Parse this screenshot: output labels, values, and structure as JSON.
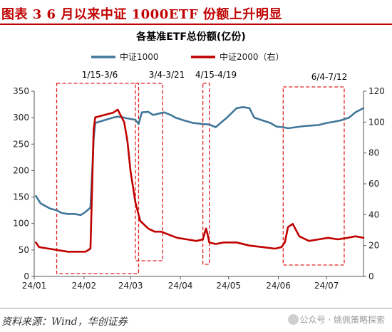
{
  "header": {
    "title": "图表 3   6 月以来中证 1000ETF 份额上升明显"
  },
  "footer": {
    "source": "资料来源：Wind，华创证券",
    "watermark": "公众号 · 姚佩策略探索"
  },
  "chart_data": {
    "type": "line",
    "title": "各基准ETF总份额(亿份)",
    "legend_position": "top",
    "grid": false,
    "x_ticks": [
      "24/01",
      "24/02",
      "24/03",
      "24/04",
      "24/05",
      "24/06",
      "24/07"
    ],
    "x_range": [
      "2024-01-01",
      "2024-07-24"
    ],
    "y_left": {
      "range": [
        0,
        350
      ],
      "ticks": [
        0,
        50,
        100,
        150,
        200,
        250,
        300,
        350
      ]
    },
    "y_right": {
      "range": [
        0,
        120
      ],
      "ticks": [
        0,
        20,
        40,
        60,
        80,
        100,
        120
      ]
    },
    "series": [
      {
        "name": "中证1000",
        "axis": "left",
        "color": "#41779a",
        "points": [
          [
            "2024-01-02",
            152
          ],
          [
            "2024-01-05",
            138
          ],
          [
            "2024-01-08",
            133
          ],
          [
            "2024-01-11",
            128
          ],
          [
            "2024-01-15",
            125
          ],
          [
            "2024-01-18",
            120
          ],
          [
            "2024-01-22",
            118
          ],
          [
            "2024-01-26",
            118
          ],
          [
            "2024-01-30",
            116
          ],
          [
            "2024-02-02",
            122
          ],
          [
            "2024-02-05",
            130
          ],
          [
            "2024-02-06",
            190
          ],
          [
            "2024-02-07",
            260
          ],
          [
            "2024-02-08",
            290
          ],
          [
            "2024-02-19",
            300
          ],
          [
            "2024-02-22",
            302
          ],
          [
            "2024-02-26",
            300
          ],
          [
            "2024-02-29",
            298
          ],
          [
            "2024-03-04",
            296
          ],
          [
            "2024-03-06",
            288
          ],
          [
            "2024-03-08",
            310
          ],
          [
            "2024-03-12",
            311
          ],
          [
            "2024-03-15",
            305
          ],
          [
            "2024-03-19",
            308
          ],
          [
            "2024-03-22",
            310
          ],
          [
            "2024-03-26",
            305
          ],
          [
            "2024-03-29",
            300
          ],
          [
            "2024-04-03",
            295
          ],
          [
            "2024-04-09",
            290
          ],
          [
            "2024-04-15",
            288
          ],
          [
            "2024-04-19",
            287
          ],
          [
            "2024-04-23",
            282
          ],
          [
            "2024-04-26",
            290
          ],
          [
            "2024-04-30",
            300
          ],
          [
            "2024-05-06",
            318
          ],
          [
            "2024-05-10",
            320
          ],
          [
            "2024-05-14",
            318
          ],
          [
            "2024-05-17",
            300
          ],
          [
            "2024-05-22",
            295
          ],
          [
            "2024-05-27",
            290
          ],
          [
            "2024-05-31",
            283
          ],
          [
            "2024-06-04",
            282
          ],
          [
            "2024-06-07",
            280
          ],
          [
            "2024-06-12",
            282
          ],
          [
            "2024-06-17",
            284
          ],
          [
            "2024-06-21",
            285
          ],
          [
            "2024-06-26",
            286
          ],
          [
            "2024-07-01",
            290
          ],
          [
            "2024-07-05",
            292
          ],
          [
            "2024-07-10",
            295
          ],
          [
            "2024-07-15",
            300
          ],
          [
            "2024-07-19",
            310
          ],
          [
            "2024-07-24",
            318
          ]
        ]
      },
      {
        "name": "中证2000（右）",
        "axis": "right",
        "color": "#c00000",
        "points": [
          [
            "2024-01-02",
            22
          ],
          [
            "2024-01-04",
            19
          ],
          [
            "2024-01-10",
            18
          ],
          [
            "2024-01-16",
            17
          ],
          [
            "2024-01-22",
            16
          ],
          [
            "2024-01-28",
            16
          ],
          [
            "2024-02-02",
            16
          ],
          [
            "2024-02-05",
            18
          ],
          [
            "2024-02-06",
            55
          ],
          [
            "2024-02-07",
            95
          ],
          [
            "2024-02-08",
            103
          ],
          [
            "2024-02-19",
            106
          ],
          [
            "2024-02-22",
            108
          ],
          [
            "2024-02-26",
            100
          ],
          [
            "2024-02-28",
            88
          ],
          [
            "2024-03-01",
            68
          ],
          [
            "2024-03-04",
            48
          ],
          [
            "2024-03-07",
            36
          ],
          [
            "2024-03-12",
            31
          ],
          [
            "2024-03-16",
            29
          ],
          [
            "2024-03-20",
            29
          ],
          [
            "2024-03-25",
            27
          ],
          [
            "2024-03-30",
            25
          ],
          [
            "2024-04-05",
            24
          ],
          [
            "2024-04-11",
            23
          ],
          [
            "2024-04-15",
            24
          ],
          [
            "2024-04-17",
            31
          ],
          [
            "2024-04-18",
            27
          ],
          [
            "2024-04-19",
            22
          ],
          [
            "2024-04-23",
            21
          ],
          [
            "2024-04-28",
            22
          ],
          [
            "2024-05-06",
            22
          ],
          [
            "2024-05-14",
            20
          ],
          [
            "2024-05-22",
            19
          ],
          [
            "2024-05-30",
            18
          ],
          [
            "2024-06-03",
            19
          ],
          [
            "2024-06-05",
            22
          ],
          [
            "2024-06-07",
            32
          ],
          [
            "2024-06-10",
            34
          ],
          [
            "2024-06-14",
            26
          ],
          [
            "2024-06-20",
            23
          ],
          [
            "2024-06-26",
            24
          ],
          [
            "2024-07-02",
            25
          ],
          [
            "2024-07-08",
            24
          ],
          [
            "2024-07-14",
            25
          ],
          [
            "2024-07-19",
            26
          ],
          [
            "2024-07-24",
            25
          ]
        ]
      }
    ],
    "annotations": [
      {
        "label": "1/15-3/6",
        "x_start": "2024-01-15",
        "x_end": "2024-03-06"
      },
      {
        "label": "3/4-3/21",
        "x_start": "2024-03-04",
        "x_end": "2024-03-21"
      },
      {
        "label": "4/15-4/19",
        "x_start": "2024-04-15",
        "x_end": "2024-04-19"
      },
      {
        "label": "6/4-7/12",
        "x_start": "2024-06-04",
        "x_end": "2024-07-12"
      }
    ]
  }
}
